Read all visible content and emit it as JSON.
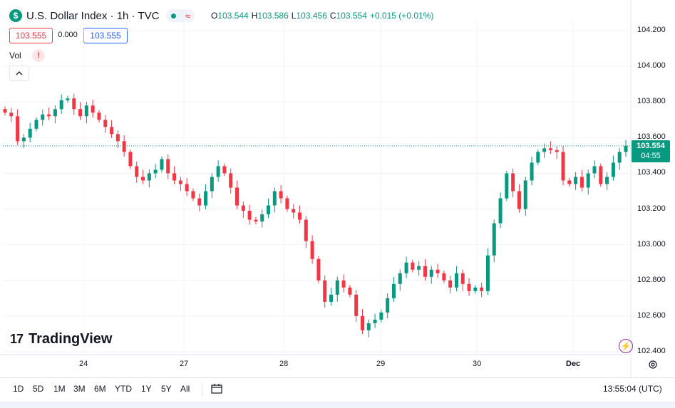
{
  "header": {
    "symbol_icon": "$",
    "title": "U.S. Dollar Index · 1h · TVC",
    "status_icons": [
      "market-open-dot",
      "data-delayed-wave"
    ]
  },
  "ohlc": {
    "o_label": "O",
    "o_value": "103.544",
    "h_label": "H",
    "h_value": "103.586",
    "l_label": "L",
    "l_value": "103.456",
    "c_label": "C",
    "c_value": "103.554",
    "change": "+0.015 (+0.01%)"
  },
  "price_boxes": {
    "sell": "103.555",
    "spread": "0.000",
    "buy": "103.555"
  },
  "volume": {
    "label": "Vol",
    "warning": "!"
  },
  "price_axis": {
    "ticks": [
      "104.200",
      "104.000",
      "103.800",
      "103.600",
      "103.400",
      "103.200",
      "103.000",
      "102.800",
      "102.600",
      "102.400"
    ]
  },
  "current_price": {
    "value": "103.554",
    "countdown": "04:55"
  },
  "time_axis": {
    "ticks": [
      "24",
      "27",
      "28",
      "29",
      "30",
      "Dec"
    ]
  },
  "logo": {
    "mark": "17",
    "text": "TradingView"
  },
  "bottom_bar": {
    "ranges": [
      "1D",
      "5D",
      "1M",
      "3M",
      "6M",
      "YTD",
      "1Y",
      "5Y",
      "All"
    ],
    "clock": "13:55:04 (UTC)"
  },
  "colors": {
    "up": "#089981",
    "down": "#f23645",
    "grid": "#f0f3fa",
    "accent": "#2962ff"
  },
  "chart_data": {
    "type": "candlestick",
    "ylim": [
      102.4,
      104.2
    ],
    "x_ticks": [
      "24",
      "27",
      "28",
      "29",
      "30",
      "Dec"
    ],
    "current_price": 103.554,
    "close_path": [
      103.74,
      103.72,
      103.58,
      103.6,
      103.65,
      103.7,
      103.73,
      103.72,
      103.76,
      103.81,
      103.82,
      103.76,
      103.72,
      103.78,
      103.74,
      103.7,
      103.66,
      103.62,
      103.58,
      103.52,
      103.44,
      103.38,
      103.36,
      103.4,
      103.42,
      103.48,
      103.4,
      103.36,
      103.34,
      103.3,
      103.26,
      103.22,
      103.3,
      103.38,
      103.44,
      103.4,
      103.32,
      103.22,
      103.19,
      103.14,
      103.13,
      103.17,
      103.22,
      103.3,
      103.26,
      103.2,
      103.18,
      103.14,
      103.02,
      102.92,
      102.8,
      102.68,
      102.72,
      102.8,
      102.76,
      102.72,
      102.6,
      102.52,
      102.56,
      102.58,
      102.62,
      102.7,
      102.78,
      102.84,
      102.9,
      102.86,
      102.88,
      102.82,
      102.86,
      102.84,
      102.8,
      102.76,
      102.84,
      102.78,
      102.74,
      102.76,
      102.74,
      102.94,
      103.12,
      103.26,
      103.4,
      103.3,
      103.2,
      103.36,
      103.46,
      103.52,
      103.54,
      103.53,
      103.52,
      103.36,
      103.34,
      103.38,
      103.32,
      103.4,
      103.44,
      103.34,
      103.38,
      103.46,
      103.52,
      103.554
    ]
  }
}
